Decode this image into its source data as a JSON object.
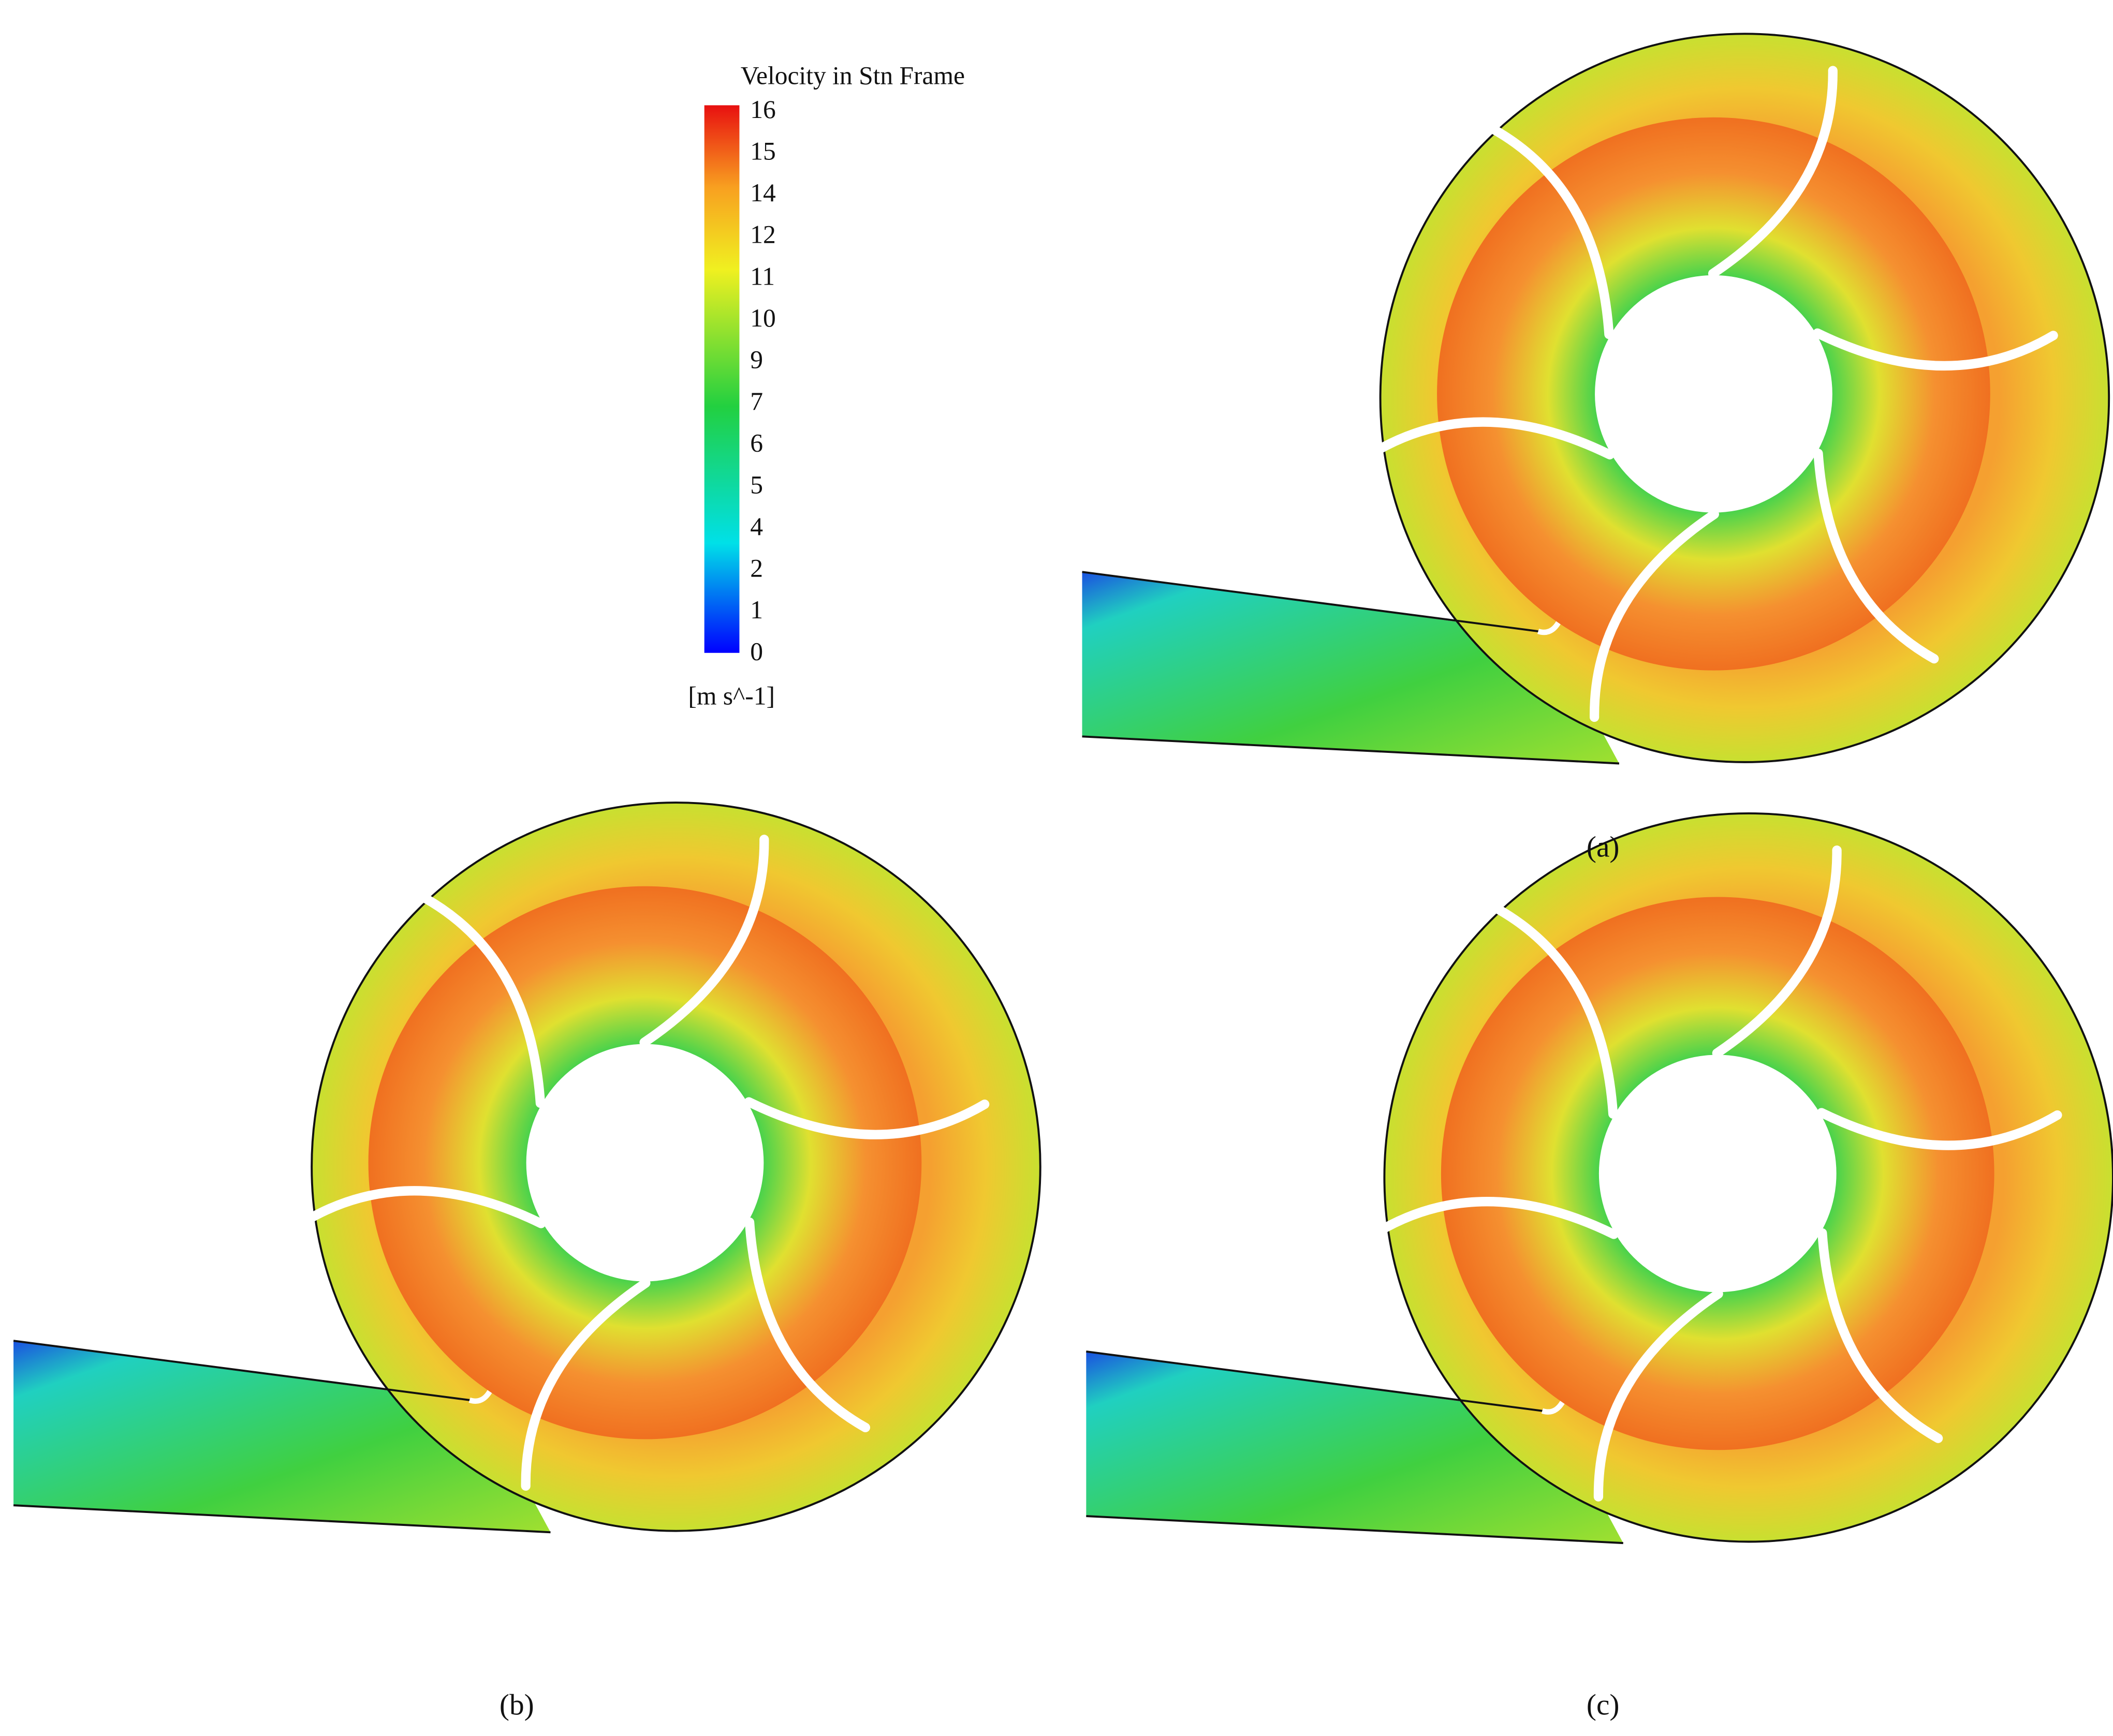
{
  "legend": {
    "title": "Velocity in Stn Frame",
    "ticks": [
      16,
      15,
      14,
      12,
      11,
      10,
      9,
      7,
      6,
      5,
      4,
      2,
      1,
      0
    ],
    "unit": "[m s^-1]"
  },
  "panels": [
    {
      "label": "(a)"
    },
    {
      "label": "(b)"
    },
    {
      "label": "(c)"
    }
  ]
}
